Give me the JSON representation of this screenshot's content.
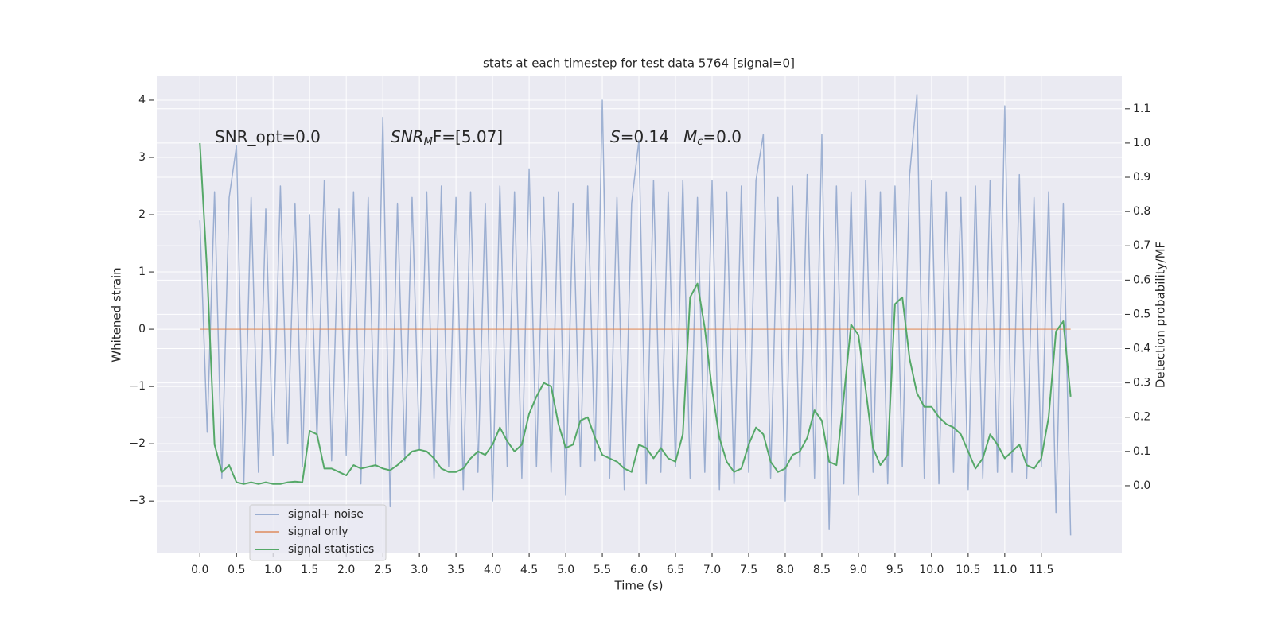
{
  "chart_data": {
    "type": "line",
    "title": "stats at each timestep for test data 5764 [signal=0]",
    "xlabel": "Time (s)",
    "ylabel": "Whitened strain",
    "y2label": "Detection probability/MF",
    "annotations": [
      [
        "SNR_opt=0.0"
      ],
      [
        "SNR",
        "M",
        "F=[5.07]"
      ],
      [
        "S",
        "=0.14"
      ],
      [
        "M",
        "c",
        "=0.0"
      ]
    ],
    "legend": "lower left",
    "grid": true,
    "xlim": [
      -0.59,
      12.6
    ],
    "ylim": [
      -3.9,
      4.43
    ],
    "y2lim": [
      -0.195,
      1.197
    ],
    "xticks": [
      {
        "value": 0,
        "label": "0.0"
      },
      {
        "value": 0.5,
        "label": "0.5"
      },
      {
        "value": 1,
        "label": "1.0"
      },
      {
        "value": 1.5,
        "label": "1.5"
      },
      {
        "value": 2,
        "label": "2.0"
      },
      {
        "value": 2.5,
        "label": "2.5"
      },
      {
        "value": 3,
        "label": "3.0"
      },
      {
        "value": 3.5,
        "label": "3.5"
      },
      {
        "value": 4,
        "label": "4.0"
      },
      {
        "value": 4.5,
        "label": "4.5"
      },
      {
        "value": 5,
        "label": "5.0"
      },
      {
        "value": 5.5,
        "label": "5.5"
      },
      {
        "value": 6,
        "label": "6.0"
      },
      {
        "value": 6.5,
        "label": "6.5"
      },
      {
        "value": 7,
        "label": "7.0"
      },
      {
        "value": 7.5,
        "label": "7.5"
      },
      {
        "value": 8,
        "label": "8.0"
      },
      {
        "value": 8.5,
        "label": "8.5"
      },
      {
        "value": 9,
        "label": "9.0"
      },
      {
        "value": 9.5,
        "label": "9.5"
      },
      {
        "value": 10,
        "label": "10.0"
      },
      {
        "value": 10.5,
        "label": "10.5"
      },
      {
        "value": 11,
        "label": "11.0"
      },
      {
        "value": 11.5,
        "label": "11.5"
      }
    ],
    "yticks": [
      {
        "value": -3,
        "label": "−3"
      },
      {
        "value": -2,
        "label": "−2"
      },
      {
        "value": -1,
        "label": "−1"
      },
      0,
      1,
      2,
      3,
      4
    ],
    "y2ticks": [
      {
        "value": 0,
        "label": "0.0"
      },
      {
        "value": 0.1,
        "label": "0.1"
      },
      {
        "value": 0.2,
        "label": "0.2"
      },
      {
        "value": 0.3,
        "label": "0.3"
      },
      {
        "value": 0.4,
        "label": "0.4"
      },
      {
        "value": 0.5,
        "label": "0.5"
      },
      {
        "value": 0.6,
        "label": "0.6"
      },
      {
        "value": 0.7,
        "label": "0.7"
      },
      {
        "value": 0.8,
        "label": "0.8"
      },
      {
        "value": 0.9,
        "label": "0.9"
      },
      {
        "value": 1,
        "label": "1.0"
      },
      {
        "value": 1.1,
        "label": "1.1"
      }
    ],
    "x": [
      0,
      0.1,
      0.2,
      0.3,
      0.4,
      0.5,
      0.6,
      0.7,
      0.8,
      0.9,
      1,
      1.1,
      1.2,
      1.3,
      1.4,
      1.5,
      1.6,
      1.7,
      1.8,
      1.9,
      2,
      2.1,
      2.2,
      2.3,
      2.4,
      2.5,
      2.6,
      2.7,
      2.8,
      2.9,
      3,
      3.1,
      3.2,
      3.3,
      3.4,
      3.5,
      3.6,
      3.7,
      3.8,
      3.9,
      4,
      4.1,
      4.2,
      4.3,
      4.4,
      4.5,
      4.6,
      4.7,
      4.8,
      4.9,
      5,
      5.1,
      5.2,
      5.3,
      5.4,
      5.5,
      5.6,
      5.7,
      5.8,
      5.9,
      6,
      6.1,
      6.2,
      6.3,
      6.4,
      6.5,
      6.6,
      6.7,
      6.8,
      6.9,
      7,
      7.1,
      7.2,
      7.3,
      7.4,
      7.5,
      7.6,
      7.7,
      7.8,
      7.9,
      8,
      8.1,
      8.2,
      8.3,
      8.4,
      8.5,
      8.6,
      8.7,
      8.8,
      8.9,
      9,
      9.1,
      9.2,
      9.3,
      9.4,
      9.5,
      9.6,
      9.7,
      9.8,
      9.9,
      10,
      10.1,
      10.2,
      10.3,
      10.4,
      10.5,
      10.6,
      10.7,
      10.8,
      10.9,
      11,
      11.1,
      11.2,
      11.3,
      11.4,
      11.5,
      11.6,
      11.7,
      11.8,
      11.9
    ],
    "series": [
      {
        "name": "signal+ noise",
        "color": "#4c72b0",
        "opacity": 0.5,
        "values": [
          1.9,
          -1.8,
          2.4,
          -2.6,
          2.3,
          3.2,
          -2.7,
          2.3,
          -2.5,
          2.1,
          -2.2,
          2.5,
          -2.0,
          2.2,
          -2.4,
          2.0,
          -1.9,
          2.6,
          -2.3,
          2.1,
          -2.2,
          2.4,
          -2.7,
          2.3,
          -2.4,
          3.7,
          -3.1,
          2.2,
          -2.3,
          2.3,
          -2.1,
          2.4,
          -2.6,
          2.5,
          -2.4,
          2.3,
          -2.8,
          2.4,
          -2.5,
          2.2,
          -3.0,
          2.5,
          -2.4,
          2.4,
          -2.6,
          2.8,
          -2.4,
          2.3,
          -2.5,
          2.4,
          -2.9,
          2.2,
          -2.4,
          2.5,
          -2.3,
          4.0,
          -2.6,
          2.3,
          -2.8,
          2.2,
          3.3,
          -2.7,
          2.6,
          -2.5,
          2.4,
          -2.4,
          2.6,
          -2.6,
          2.3,
          -2.5,
          2.6,
          -2.8,
          2.4,
          -2.7,
          2.5,
          -2.5,
          2.6,
          3.4,
          -2.6,
          2.3,
          -3.0,
          2.5,
          -2.4,
          2.7,
          -2.6,
          3.4,
          -3.5,
          2.5,
          -2.7,
          2.4,
          -2.9,
          2.6,
          -2.5,
          2.4,
          -2.7,
          2.5,
          -2.4,
          2.7,
          4.1,
          -2.6,
          2.6,
          -2.7,
          2.4,
          -2.5,
          2.3,
          -2.8,
          2.5,
          -2.6,
          2.6,
          -2.5,
          3.9,
          -2.5,
          2.7,
          -2.6,
          2.3,
          -2.4,
          2.4,
          -3.2,
          2.2,
          -3.6
        ]
      },
      {
        "name": "signal only",
        "color": "#dd8452",
        "opacity": 0.7,
        "values": [
          0,
          0,
          0,
          0,
          0,
          0,
          0,
          0,
          0,
          0,
          0,
          0,
          0,
          0,
          0,
          0,
          0,
          0,
          0,
          0,
          0,
          0,
          0,
          0,
          0,
          0,
          0,
          0,
          0,
          0,
          0,
          0,
          0,
          0,
          0,
          0,
          0,
          0,
          0,
          0,
          0,
          0,
          0,
          0,
          0,
          0,
          0,
          0,
          0,
          0,
          0,
          0,
          0,
          0,
          0,
          0,
          0,
          0,
          0,
          0,
          0,
          0,
          0,
          0,
          0,
          0,
          0,
          0,
          0,
          0,
          0,
          0,
          0,
          0,
          0,
          0,
          0,
          0,
          0,
          0,
          0,
          0,
          0,
          0,
          0,
          0,
          0,
          0,
          0,
          0,
          0,
          0,
          0,
          0,
          0,
          0,
          0,
          0,
          0,
          0,
          0,
          0,
          0,
          0,
          0,
          0,
          0,
          0,
          0,
          0,
          0,
          0,
          0,
          0,
          0,
          0,
          0,
          0,
          0,
          0
        ]
      },
      {
        "name": "signal statistics",
        "color": "#55a868",
        "opacity": 1,
        "axis": "y2",
        "values": [
          1.0,
          0.62,
          0.12,
          0.04,
          0.06,
          0.01,
          0.005,
          0.01,
          0.005,
          0.01,
          0.005,
          0.005,
          0.01,
          0.012,
          0.01,
          0.16,
          0.15,
          0.05,
          0.05,
          0.04,
          0.03,
          0.06,
          0.05,
          0.055,
          0.06,
          0.05,
          0.045,
          0.06,
          0.08,
          0.1,
          0.105,
          0.1,
          0.08,
          0.05,
          0.04,
          0.04,
          0.05,
          0.08,
          0.1,
          0.09,
          0.12,
          0.17,
          0.13,
          0.1,
          0.12,
          0.21,
          0.26,
          0.3,
          0.29,
          0.18,
          0.11,
          0.12,
          0.19,
          0.2,
          0.14,
          0.09,
          0.08,
          0.07,
          0.05,
          0.04,
          0.12,
          0.11,
          0.08,
          0.11,
          0.08,
          0.07,
          0.15,
          0.55,
          0.59,
          0.46,
          0.28,
          0.14,
          0.07,
          0.04,
          0.05,
          0.12,
          0.17,
          0.15,
          0.07,
          0.04,
          0.05,
          0.09,
          0.1,
          0.14,
          0.22,
          0.19,
          0.07,
          0.06,
          0.26,
          0.47,
          0.44,
          0.28,
          0.11,
          0.06,
          0.09,
          0.53,
          0.55,
          0.37,
          0.27,
          0.23,
          0.23,
          0.2,
          0.18,
          0.17,
          0.15,
          0.1,
          0.05,
          0.08,
          0.15,
          0.12,
          0.08,
          0.1,
          0.12,
          0.06,
          0.05,
          0.08,
          0.2,
          0.45,
          0.48,
          0.26
        ]
      }
    ]
  }
}
